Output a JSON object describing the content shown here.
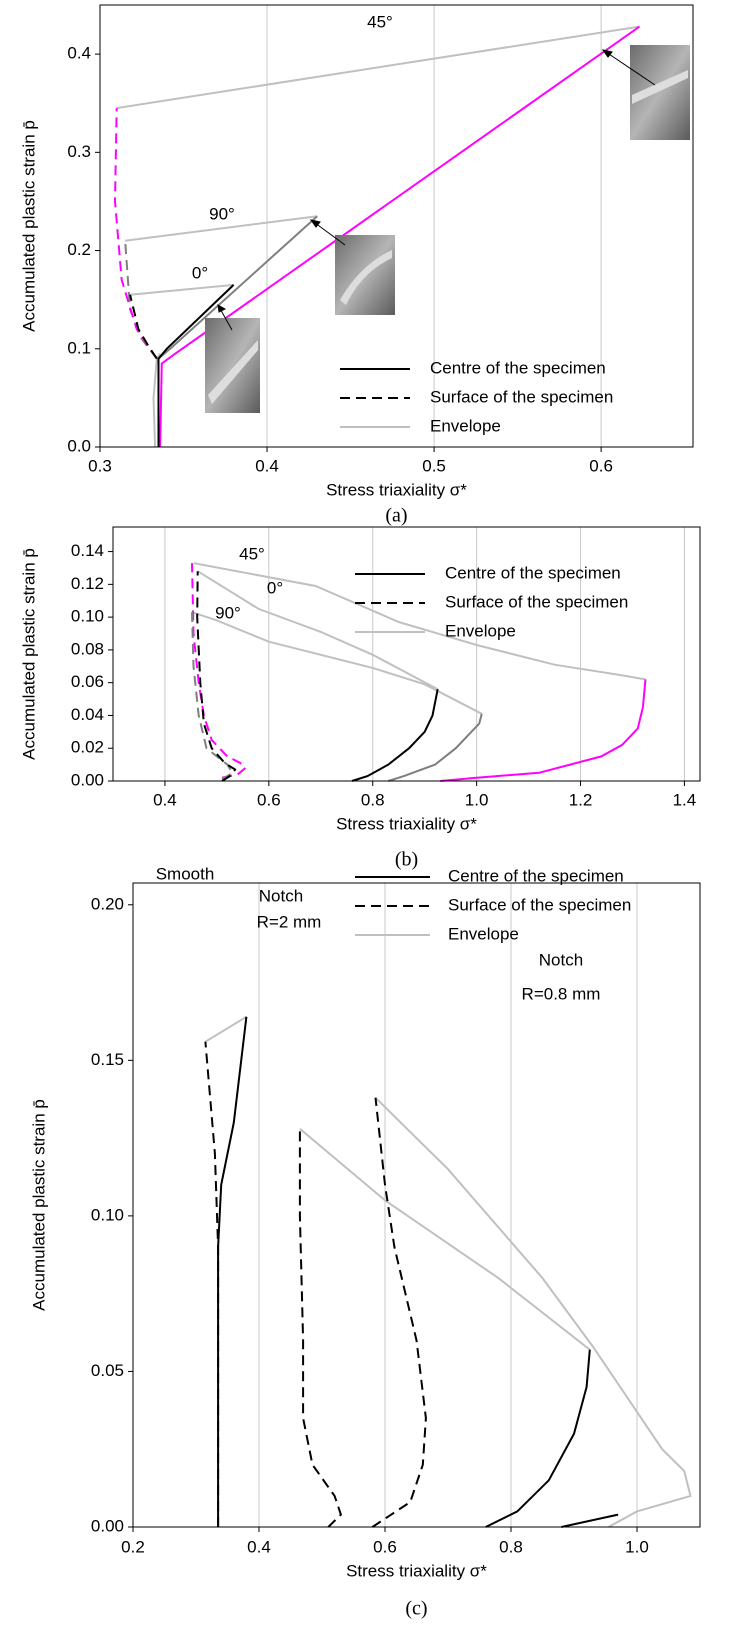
{
  "chart_data": [
    {
      "type": "line",
      "caption": "(a)",
      "xlabel": "Stress triaxiality σ*",
      "ylabel": "Accumulated plastic strain p̄",
      "xlim": [
        0.3,
        0.655
      ],
      "xticks": [
        0.3,
        0.4,
        0.5,
        0.6
      ],
      "ylim": [
        0,
        0.45
      ],
      "yticks": [
        {
          "value": 0,
          "label": "0.0"
        },
        0.1,
        0.2,
        0.3,
        0.4
      ],
      "grid": "x",
      "legend": [
        {
          "name": "Centre of the specimen",
          "color": "#000000",
          "style": "solid"
        },
        {
          "name": "Surface of the specimen",
          "color": "#000000",
          "style": "dashed"
        },
        {
          "name": "Envelope",
          "color": "#c0c0c0",
          "style": "solid"
        }
      ],
      "annotations": [
        {
          "text": "45°",
          "color": "#ff00ff"
        },
        {
          "text": "90°",
          "color": "#7f7f7f"
        },
        {
          "text": "0°",
          "color": "#000000"
        }
      ],
      "series": [
        {
          "color": "#c0c0c0",
          "style": "solid",
          "x": [
            0.31,
            0.623
          ],
          "values": [
            0.345,
            0.428
          ]
        },
        {
          "color": "#c0c0c0",
          "style": "solid",
          "x": [
            0.315,
            0.43
          ],
          "values": [
            0.21,
            0.235
          ]
        },
        {
          "color": "#c0c0c0",
          "style": "solid",
          "x": [
            0.318,
            0.38
          ],
          "values": [
            0.155,
            0.165
          ]
        },
        {
          "color": "#c0c0c0",
          "style": "solid",
          "x": [
            0.333,
            0.332,
            0.334,
            0.336
          ],
          "values": [
            0,
            0.05,
            0.09,
            0.095
          ]
        },
        {
          "color": "#7f7f7f",
          "style": "solid",
          "x": [
            0.335,
            0.335,
            0.342,
            0.43
          ],
          "values": [
            0,
            0.09,
            0.1,
            0.235
          ]
        },
        {
          "color": "#7f7f7f",
          "style": "dashed",
          "x": [
            0.334,
            0.325,
            0.318,
            0.315
          ],
          "values": [
            0.09,
            0.11,
            0.14,
            0.21
          ]
        },
        {
          "color": "#ff00ff",
          "style": "solid",
          "x": [
            0.336,
            0.337,
            0.345,
            0.623
          ],
          "values": [
            0,
            0.085,
            0.095,
            0.428
          ]
        },
        {
          "color": "#ff00ff",
          "style": "dashed",
          "x": [
            0.334,
            0.322,
            0.313,
            0.309,
            0.31
          ],
          "values": [
            0.09,
            0.12,
            0.17,
            0.25,
            0.345
          ]
        },
        {
          "color": "#000000",
          "style": "solid",
          "x": [
            0.335,
            0.335,
            0.34,
            0.38
          ],
          "values": [
            0,
            0.09,
            0.1,
            0.165
          ]
        },
        {
          "color": "#000000",
          "style": "dashed",
          "x": [
            0.334,
            0.33,
            0.323,
            0.318
          ],
          "values": [
            0.09,
            0.1,
            0.12,
            0.155
          ]
        }
      ]
    },
    {
      "type": "line",
      "caption": "(b)",
      "xlabel": "Stress triaxiality σ*",
      "ylabel": "Accumulated plastic strain p̄",
      "xlim": [
        0.3,
        1.43
      ],
      "xticks": [
        0.4,
        0.6,
        0.8,
        {
          "value": 1,
          "label": "1.0"
        },
        1.2,
        1.4
      ],
      "ylim": [
        0,
        0.155
      ],
      "yticks": [
        {
          "value": 0,
          "label": "0.00"
        },
        {
          "value": 0.02,
          "label": "0.02"
        },
        {
          "value": 0.04,
          "label": "0.04"
        },
        {
          "value": 0.06,
          "label": "0.06"
        },
        {
          "value": 0.08,
          "label": "0.08"
        },
        {
          "value": 0.1,
          "label": "0.10"
        },
        {
          "value": 0.12,
          "label": "0.12"
        },
        {
          "value": 0.14,
          "label": "0.14"
        }
      ],
      "grid": "x",
      "legend": [
        {
          "name": "Centre of the specimen",
          "color": "#000000",
          "style": "solid"
        },
        {
          "name": "Surface of the specimen",
          "color": "#000000",
          "style": "dashed"
        },
        {
          "name": "Envelope",
          "color": "#c0c0c0",
          "style": "solid"
        }
      ],
      "annotations": [
        {
          "text": "45°",
          "color": "#ff00ff"
        },
        {
          "text": "0°",
          "color": "#000000"
        },
        {
          "text": "90°",
          "color": "#7f7f7f"
        }
      ],
      "series": [
        {
          "color": "#c0c0c0",
          "style": "solid",
          "x": [
            0.455,
            0.69,
            0.85,
            1.0,
            1.15,
            1.27,
            1.325
          ],
          "values": [
            0.133,
            0.119,
            0.097,
            0.083,
            0.071,
            0.065,
            0.062
          ]
        },
        {
          "color": "#c0c0c0",
          "style": "solid",
          "x": [
            0.463,
            0.58,
            0.7,
            0.8,
            0.925
          ],
          "values": [
            0.128,
            0.105,
            0.091,
            0.077,
            0.056
          ]
        },
        {
          "color": "#c0c0c0",
          "style": "solid",
          "x": [
            0.452,
            0.5,
            0.6,
            0.8,
            0.9,
            1.01
          ],
          "values": [
            0.103,
            0.098,
            0.085,
            0.069,
            0.059,
            0.041
          ]
        },
        {
          "color": "#ff00ff",
          "style": "solid",
          "x": [
            0.93,
            1.0,
            1.12,
            1.18,
            1.24,
            1.28,
            1.31,
            1.32,
            1.325
          ],
          "values": [
            0,
            0.002,
            0.005,
            0.01,
            0.015,
            0.022,
            0.032,
            0.045,
            0.062
          ]
        },
        {
          "color": "#ff00ff",
          "style": "dashed",
          "x": [
            0.51,
            0.54,
            0.555,
            0.545,
            0.52,
            0.49,
            0.475,
            0.465,
            0.455,
            0.452
          ],
          "values": [
            0.002,
            0.004,
            0.008,
            0.011,
            0.015,
            0.025,
            0.04,
            0.06,
            0.09,
            0.133
          ]
        },
        {
          "color": "#7f7f7f",
          "style": "solid",
          "x": [
            0.83,
            0.86,
            0.92,
            0.96,
            0.99,
            1.005,
            1.01
          ],
          "values": [
            0,
            0.003,
            0.01,
            0.02,
            0.03,
            0.035,
            0.041
          ]
        },
        {
          "color": "#7f7f7f",
          "style": "dashed",
          "x": [
            0.51,
            0.53,
            0.52,
            0.48,
            0.465,
            0.455,
            0.452
          ],
          "values": [
            0.001,
            0.005,
            0.01,
            0.02,
            0.04,
            0.07,
            0.103
          ]
        },
        {
          "color": "#000000",
          "style": "solid",
          "x": [
            0.76,
            0.79,
            0.83,
            0.87,
            0.9,
            0.915,
            0.925
          ],
          "values": [
            0,
            0.003,
            0.01,
            0.02,
            0.03,
            0.04,
            0.056
          ]
        },
        {
          "color": "#000000",
          "style": "dashed",
          "x": [
            0.51,
            0.53,
            0.535,
            0.515,
            0.49,
            0.475,
            0.468,
            0.462,
            0.463
          ],
          "values": [
            0,
            0.004,
            0.007,
            0.011,
            0.02,
            0.035,
            0.06,
            0.1,
            0.128
          ]
        }
      ]
    },
    {
      "type": "line",
      "caption": "(c)",
      "xlabel": "Stress triaxiality σ*",
      "ylabel": "Accumulated plastic strain p̄",
      "xlim": [
        0.2,
        1.1
      ],
      "xticks": [
        0.2,
        0.4,
        0.6,
        0.8,
        {
          "value": 1,
          "label": "1.0"
        }
      ],
      "ylim": [
        0,
        0.207
      ],
      "yticks": [
        {
          "value": 0,
          "label": "0.00"
        },
        {
          "value": 0.05,
          "label": "0.05"
        },
        {
          "value": 0.1,
          "label": "0.10"
        },
        {
          "value": 0.15,
          "label": "0.15"
        },
        {
          "value": 0.2,
          "label": "0.20"
        }
      ],
      "grid": "x",
      "legend": [
        {
          "name": "Centre of the specimen",
          "color": "#000000",
          "style": "solid"
        },
        {
          "name": "Surface of the specimen",
          "color": "#000000",
          "style": "dashed"
        },
        {
          "name": "Envelope",
          "color": "#c0c0c0",
          "style": "solid"
        }
      ],
      "annotations": [
        {
          "text": "Smooth",
          "color": "#000000"
        },
        {
          "text": "Notch",
          "color": "#000000"
        },
        {
          "text": "R=2 mm",
          "color": "#000000"
        },
        {
          "text": "Notch",
          "color": "#000000"
        },
        {
          "text": "R=0.8 mm",
          "color": "#000000"
        }
      ],
      "series": [
        {
          "color": "#c0c0c0",
          "style": "solid",
          "x": [
            0.315,
            0.38
          ],
          "values": [
            0.156,
            0.164
          ]
        },
        {
          "color": "#c0c0c0",
          "style": "solid",
          "x": [
            0.465,
            0.6,
            0.78,
            0.925
          ],
          "values": [
            0.128,
            0.105,
            0.08,
            0.057
          ]
        },
        {
          "color": "#c0c0c0",
          "style": "solid",
          "x": [
            0.585,
            0.7,
            0.85,
            0.93,
            1.04,
            1.075,
            1.085,
            1.0,
            0.955
          ],
          "values": [
            0.138,
            0.115,
            0.08,
            0.058,
            0.025,
            0.018,
            0.01,
            0.005,
            0
          ]
        },
        {
          "color": "#000000",
          "style": "solid",
          "x": [
            0.335,
            0.335,
            0.34,
            0.36,
            0.38
          ],
          "values": [
            0,
            0.09,
            0.11,
            0.13,
            0.164
          ]
        },
        {
          "color": "#000000",
          "style": "dashed",
          "x": [
            0.335,
            0.335,
            0.33,
            0.315
          ],
          "values": [
            0,
            0.09,
            0.12,
            0.156
          ]
        },
        {
          "color": "#000000",
          "style": "dashed",
          "x": [
            0.51,
            0.53,
            0.52,
            0.485,
            0.47,
            0.47,
            0.465,
            0.465
          ],
          "values": [
            0,
            0.004,
            0.01,
            0.02,
            0.035,
            0.06,
            0.1,
            0.128
          ]
        },
        {
          "color": "#000000",
          "style": "dashed",
          "x": [
            0.58,
            0.64,
            0.66,
            0.665,
            0.65,
            0.615,
            0.6,
            0.585
          ],
          "values": [
            0,
            0.008,
            0.02,
            0.035,
            0.06,
            0.09,
            0.11,
            0.138
          ]
        },
        {
          "color": "#000000",
          "style": "solid",
          "x": [
            0.76,
            0.81,
            0.86,
            0.9,
            0.92,
            0.925
          ],
          "values": [
            0,
            0.005,
            0.015,
            0.03,
            0.045,
            0.057
          ]
        },
        {
          "color": "#000000",
          "style": "solid",
          "x": [
            0.88,
            0.97
          ],
          "values": [
            0,
            0.004
          ]
        }
      ]
    }
  ]
}
